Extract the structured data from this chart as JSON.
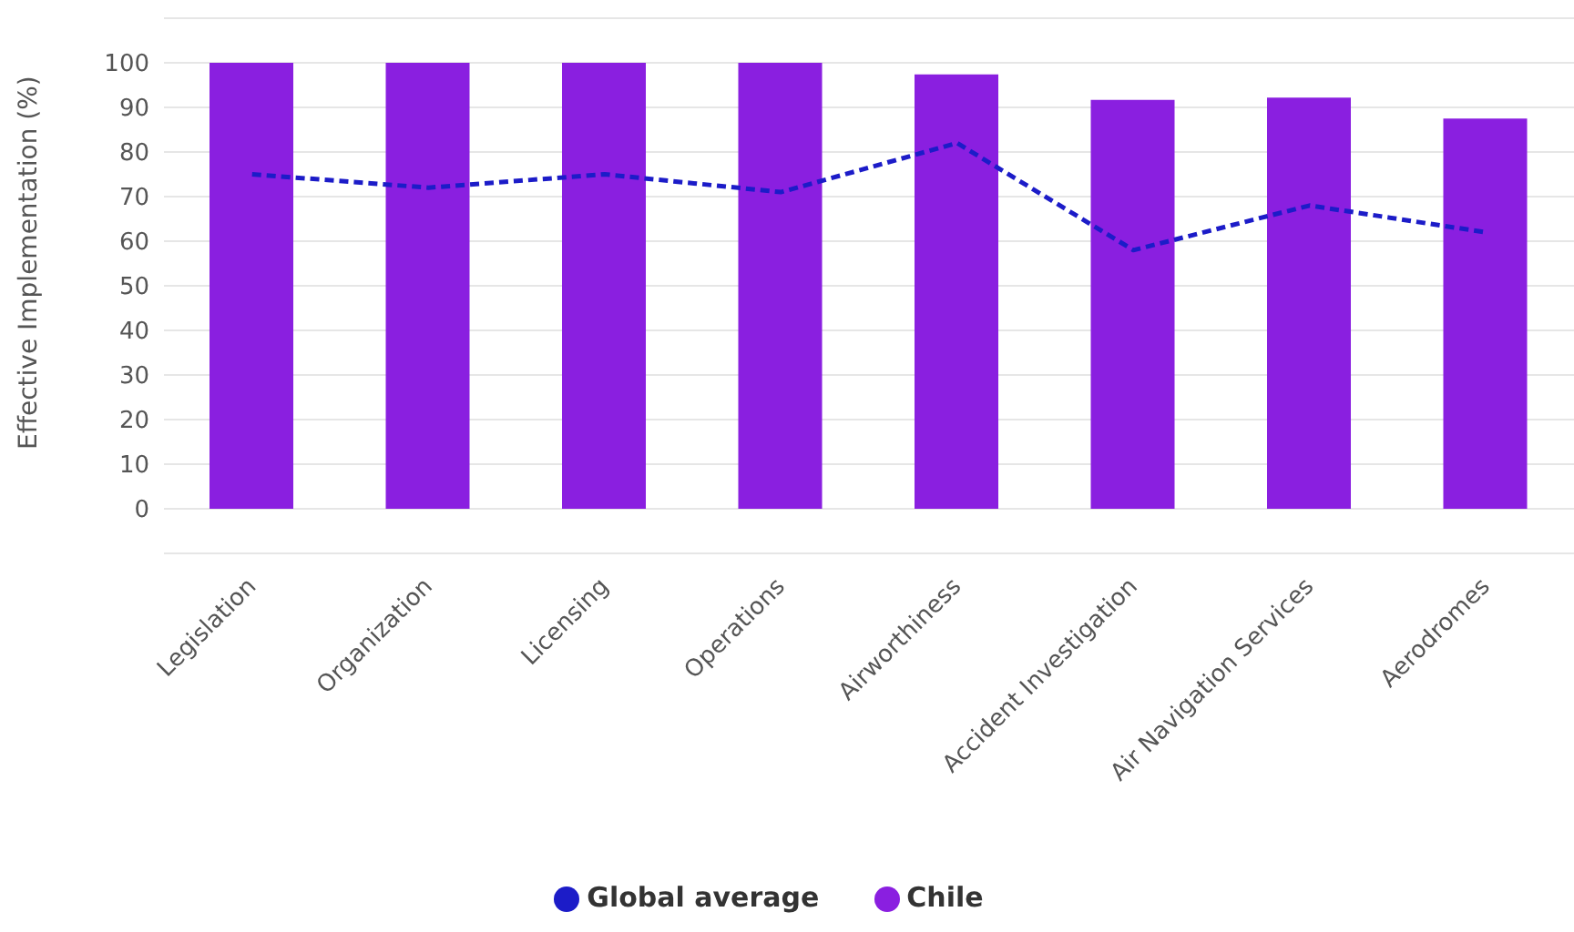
{
  "chart_data": {
    "type": "bar",
    "ylabel": "Effective Implementation (%)",
    "categories": [
      "Legislation",
      "Organization",
      "Licensing",
      "Operations",
      "Airworthiness",
      "Accident Investigation",
      "Air Navigation Services",
      "Aerodromes"
    ],
    "series": [
      {
        "name": "Global average",
        "type": "line",
        "color": "#1c1cc8",
        "line_style": "dashed",
        "marker": "none",
        "values": [
          75,
          72,
          75,
          71,
          82,
          58,
          68,
          62
        ]
      },
      {
        "name": "Chile",
        "color": "#8a1fe0",
        "values": [
          100,
          100,
          100,
          100,
          97.4,
          91.7,
          92.2,
          87.5
        ]
      }
    ],
    "ylim": [
      -10,
      110
    ],
    "yticks": [
      {
        "value": -10,
        "label": null
      },
      0,
      10,
      20,
      30,
      40,
      50,
      60,
      70,
      80,
      90,
      100,
      {
        "value": 110,
        "label": null
      }
    ],
    "grid": "y",
    "legend": "bottom"
  }
}
